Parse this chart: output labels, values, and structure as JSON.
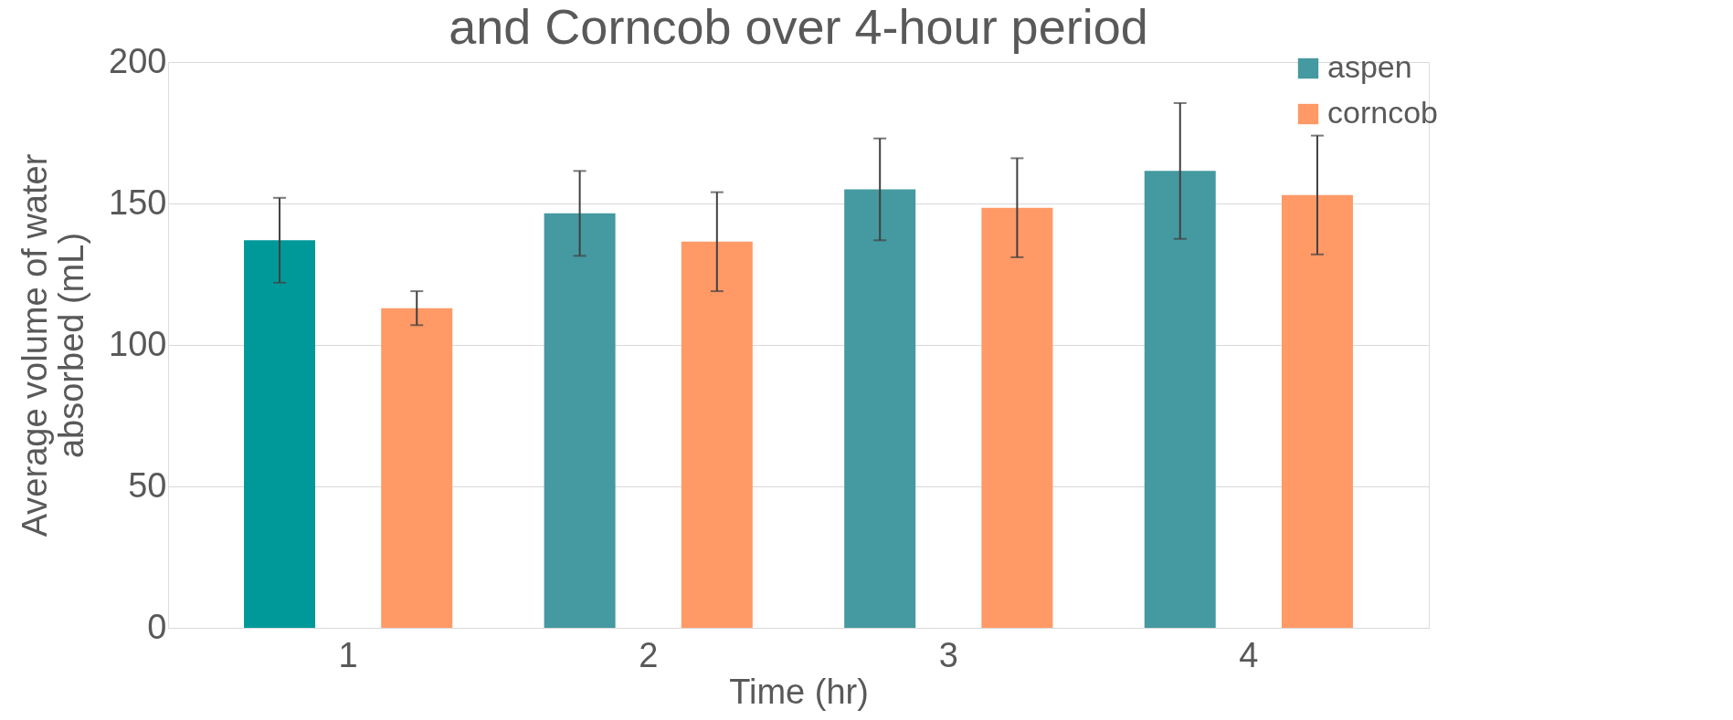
{
  "chart_data": {
    "type": "bar",
    "title": "and Corncob over 4-hour period",
    "xlabel": "Time (hr)",
    "ylabel": "Average volume of water absorbed (mL)",
    "categories": [
      "1",
      "2",
      "3",
      "4"
    ],
    "series": [
      {
        "name": "aspen",
        "color": "#4599a0",
        "colors": [
          "#009999",
          "#4599a0",
          "#4599a0",
          "#4599a0"
        ],
        "values": [
          137,
          146.5,
          155,
          161.5
        ],
        "errors": [
          15,
          15,
          18,
          24
        ]
      },
      {
        "name": "corncob",
        "color": "#ff9966",
        "colors": [
          "#ff9966",
          "#ff9966",
          "#ff9966",
          "#ff9966"
        ],
        "values": [
          113,
          136.5,
          148.5,
          153
        ],
        "errors": [
          6,
          17.5,
          17.5,
          21
        ]
      }
    ],
    "ylim": [
      0,
      200
    ],
    "yticks": [
      0,
      50,
      100,
      150,
      200
    ],
    "grid": "y",
    "legend": "top right"
  }
}
